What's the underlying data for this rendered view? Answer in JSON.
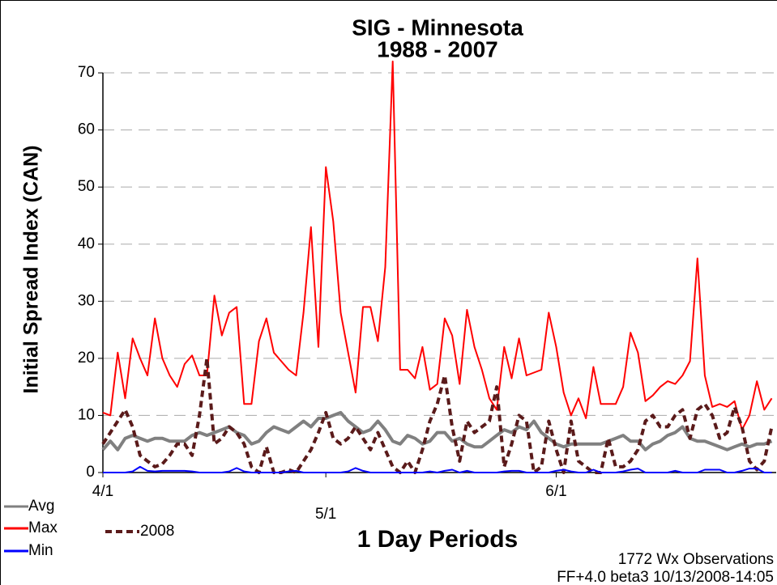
{
  "chart_data": {
    "type": "line",
    "title": "SIG - Minnesota",
    "subtitle": "1988 - 2007",
    "x_label": "1 Day Periods",
    "y_label": "Initial Spread Index (CAN)",
    "annotations": [
      "1772 Wx Observations",
      "FF+4.0 beta3 10/13/2008-14:05"
    ],
    "x": [
      0,
      1,
      2,
      3,
      4,
      5,
      6,
      7,
      8,
      9,
      10,
      11,
      12,
      13,
      14,
      15,
      16,
      17,
      18,
      19,
      20,
      21,
      22,
      23,
      24,
      25,
      26,
      27,
      28,
      29,
      30,
      31,
      32,
      33,
      34,
      35,
      36,
      37,
      38,
      39,
      40,
      41,
      42,
      43,
      44,
      45,
      46,
      47,
      48,
      49,
      50,
      51,
      52,
      53,
      54,
      55,
      56,
      57,
      58,
      59,
      60,
      61,
      62,
      63,
      64,
      65,
      66,
      67,
      68,
      69,
      70,
      71,
      72,
      73,
      74,
      75,
      76,
      77,
      78,
      79,
      80,
      81,
      82,
      83,
      84,
      85,
      86,
      87,
      88,
      89,
      90
    ],
    "xlim": [
      0,
      90.6
    ],
    "xticks": [
      {
        "value": 0,
        "label": "4/1"
      },
      {
        "value": 30,
        "label": "5/1"
      },
      {
        "value": 61,
        "label": "6/1"
      }
    ],
    "ylim": [
      0,
      71
    ],
    "yticks": [
      0,
      10,
      20,
      30,
      40,
      50,
      60,
      70
    ],
    "grid": true,
    "legend": "bottom-left",
    "series": [
      {
        "name": "Avg",
        "color": "#808080",
        "values": [
          4,
          5.5,
          4,
          6,
          6.5,
          6,
          5.5,
          6,
          6,
          5.5,
          5.5,
          5.5,
          6.5,
          7,
          6.5,
          7,
          7.5,
          8,
          7,
          6.5,
          5,
          5.5,
          7,
          8,
          7.5,
          7,
          8,
          9,
          8,
          9.5,
          9.5,
          10,
          10.5,
          9,
          8,
          7,
          7.5,
          9,
          7.5,
          5.5,
          5,
          6.5,
          6,
          5,
          5.5,
          7,
          7,
          5.5,
          6,
          5,
          4.5,
          4.5,
          5.5,
          6.5,
          7.5,
          7,
          8,
          7.5,
          9,
          7,
          6,
          5,
          4.5,
          5,
          5,
          5,
          5,
          5,
          5.5,
          6,
          6.5,
          5.5,
          5.5,
          4,
          5,
          5.5,
          6.5,
          7,
          8,
          6,
          5.5,
          5.5,
          5,
          4.5,
          4,
          4.5,
          5,
          4.5,
          5,
          5,
          5.5
        ]
      },
      {
        "name": "Max",
        "color": "#ff0000",
        "values": [
          10.5,
          10,
          21,
          13,
          23.5,
          20,
          17,
          27,
          20,
          17,
          15,
          19,
          20.5,
          17,
          17,
          31,
          24,
          28,
          29,
          12,
          12,
          23,
          27,
          21,
          19.5,
          18,
          17,
          28,
          43,
          22,
          53.5,
          44,
          28,
          21,
          14,
          29,
          29,
          23,
          36,
          72,
          18,
          18,
          16.5,
          22,
          14.5,
          15.5,
          27,
          24,
          15.5,
          28.5,
          22,
          18,
          13,
          11,
          22,
          16.5,
          23.5,
          17,
          17.5,
          18,
          28,
          22,
          14,
          10,
          13,
          9.5,
          18.5,
          12,
          12,
          12,
          15,
          24.5,
          21,
          12.5,
          13.5,
          15,
          16,
          15.5,
          17,
          19.5,
          37.5,
          17,
          11.5,
          12,
          11.5,
          12.5,
          7.5,
          10,
          16,
          11,
          13
        ]
      },
      {
        "name": "Min",
        "color": "#0000ff",
        "values": [
          0,
          0,
          0,
          0,
          0.2,
          1,
          0.3,
          0.2,
          0.3,
          0.3,
          0.3,
          0.3,
          0.2,
          0,
          0,
          0,
          0,
          0.2,
          0.8,
          0.2,
          0,
          0,
          0,
          0,
          0,
          0.2,
          0.3,
          0,
          0,
          0,
          0,
          0,
          0,
          0.2,
          0.8,
          0.3,
          0,
          0,
          0,
          0,
          0,
          0,
          0,
          0,
          0.2,
          0,
          0.3,
          0.5,
          0,
          0.3,
          0,
          0,
          0,
          0,
          0.2,
          0.3,
          0.3,
          0,
          0,
          0,
          0,
          0.3,
          0.5,
          0.2,
          0,
          0,
          0.5,
          0,
          0,
          0,
          0.2,
          0.5,
          0.7,
          0,
          0,
          0,
          0,
          0.3,
          0,
          0,
          0,
          0.5,
          0.5,
          0.5,
          0,
          0,
          0.3,
          0.7,
          0.7,
          0,
          0
        ]
      },
      {
        "name": "2008",
        "color": "#5a1a1a",
        "dashed": true,
        "values": [
          5,
          7,
          9,
          11,
          8,
          3,
          2,
          1,
          1.5,
          3,
          5,
          5,
          3,
          10,
          20,
          5,
          6,
          8,
          7,
          5,
          1,
          0,
          4.5,
          0,
          0,
          0.5,
          0,
          2,
          4,
          7,
          10.5,
          6,
          5,
          6,
          8,
          6,
          4,
          7,
          4,
          1,
          0,
          2,
          0,
          4,
          9,
          12,
          17,
          8,
          2,
          9,
          7,
          8,
          9,
          15,
          1,
          5,
          10,
          9,
          0,
          1,
          9,
          4,
          0,
          9,
          2,
          1,
          0,
          0,
          6,
          1,
          1,
          2,
          4,
          9,
          10,
          8,
          8,
          10,
          11,
          6,
          11,
          12,
          10,
          6,
          7,
          11.5,
          8,
          2,
          0.5,
          2,
          8
        ]
      }
    ]
  }
}
